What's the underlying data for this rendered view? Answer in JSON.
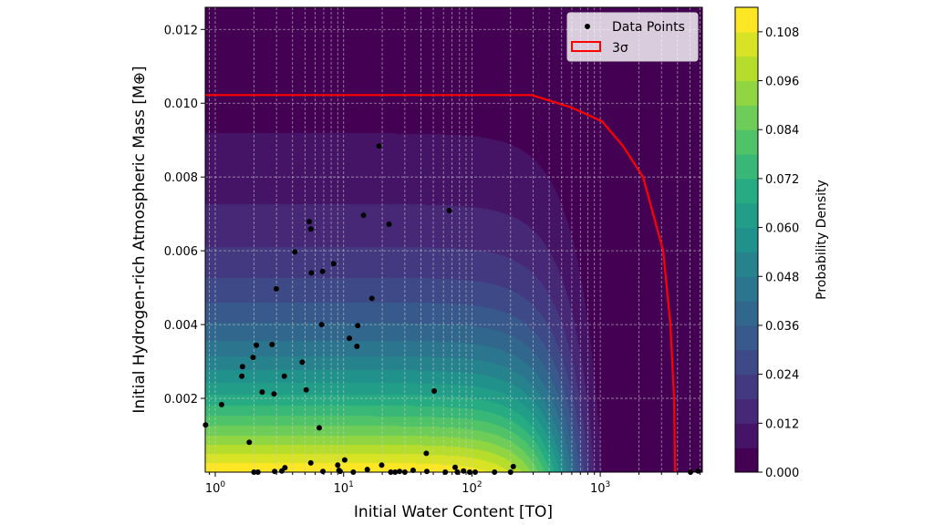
{
  "chart_data": {
    "type": "contour+scatter",
    "xlabel": "Initial Water Content [TO]",
    "ylabel": "Initial Hydrogen-rich Atmospheric Mass [M⊕]",
    "xscale": "log",
    "xlim": [
      0.835,
      6240
    ],
    "ylim": [
      0,
      0.0126
    ],
    "xticks": [
      {
        "v": 1,
        "base": "10",
        "exp": "0"
      },
      {
        "v": 10,
        "base": "10",
        "exp": "1"
      },
      {
        "v": 100,
        "base": "10",
        "exp": "2"
      },
      {
        "v": 1000,
        "base": "10",
        "exp": "3"
      }
    ],
    "yticks": [
      "0.002",
      "0.004",
      "0.006",
      "0.008",
      "0.010",
      "0.012"
    ],
    "grid": true,
    "legend": {
      "placement": "top-right",
      "entries": [
        "Data Points",
        "3σ"
      ]
    },
    "colorbar": {
      "label": "Probability Density",
      "range": [
        0,
        0.114
      ],
      "level_step": 0.006,
      "ticks": [
        "0.000",
        "0.012",
        "0.024",
        "0.036",
        "0.048",
        "0.060",
        "0.072",
        "0.084",
        "0.096",
        "0.108"
      ],
      "colormap": "viridis"
    },
    "colors": {
      "points": "#000000",
      "sigma_curve": "#ff0000"
    },
    "sigma_curve": [
      [
        0.835,
        0.01022
      ],
      [
        293,
        0.01022
      ],
      [
        601,
        0.00988
      ],
      [
        1031,
        0.00951
      ],
      [
        1503,
        0.00884
      ],
      [
        2153,
        0.008
      ],
      [
        3090,
        0.006
      ],
      [
        3520,
        0.004
      ],
      [
        3757,
        0.002
      ],
      [
        3830,
        0.0
      ]
    ],
    "points": [
      [
        18.9,
        0.00884
      ],
      [
        14.3,
        0.00696
      ],
      [
        22.6,
        0.00672
      ],
      [
        66.7,
        0.00709
      ],
      [
        5.4,
        0.00679
      ],
      [
        5.55,
        0.00659
      ],
      [
        4.17,
        0.00597
      ],
      [
        8.36,
        0.00565
      ],
      [
        5.61,
        0.0054
      ],
      [
        6.86,
        0.00544
      ],
      [
        2.99,
        0.00497
      ],
      [
        16.6,
        0.00471
      ],
      [
        6.75,
        0.004
      ],
      [
        12.9,
        0.00397
      ],
      [
        11.1,
        0.00363
      ],
      [
        12.7,
        0.00341
      ],
      [
        2.09,
        0.00344
      ],
      [
        2.77,
        0.00346
      ],
      [
        1.97,
        0.00311
      ],
      [
        1.63,
        0.00286
      ],
      [
        1.61,
        0.0026
      ],
      [
        4.76,
        0.00298
      ],
      [
        3.45,
        0.0026
      ],
      [
        2.32,
        0.00217
      ],
      [
        2.87,
        0.00212
      ],
      [
        5.11,
        0.00223
      ],
      [
        50.8,
        0.0022
      ],
      [
        1.12,
        0.00183
      ],
      [
        0.84,
        0.00128
      ],
      [
        6.46,
        0.0012
      ],
      [
        1.84,
        0.00081
      ],
      [
        44.1,
        0.00051
      ],
      [
        5.55,
        0.00025
      ],
      [
        10.2,
        0.00033
      ],
      [
        9.0,
        0.00019
      ],
      [
        19.8,
        0.00019
      ],
      [
        15.3,
        7e-05
      ],
      [
        34.8,
        5e-05
      ],
      [
        210,
        0.00015
      ],
      [
        3.49,
        0.00012
      ],
      [
        3.3,
        3e-05
      ],
      [
        2.9,
        2e-05
      ],
      [
        2.0,
        0.0
      ],
      [
        2.15,
        0.0
      ],
      [
        6.9,
        2e-05
      ],
      [
        9.2,
        5e-05
      ],
      [
        9.4,
        2e-05
      ],
      [
        11.9,
        0.0
      ],
      [
        23.3,
        0.0
      ],
      [
        25.2,
        0.0
      ],
      [
        27.3,
        2e-05
      ],
      [
        30,
        0.0
      ],
      [
        44.5,
        2e-05
      ],
      [
        62,
        0.0
      ],
      [
        74,
        0.00013
      ],
      [
        77,
        0.0
      ],
      [
        86,
        3e-05
      ],
      [
        96,
        0.0
      ],
      [
        106,
        0.0
      ],
      [
        150,
        0.0
      ],
      [
        200,
        0.0
      ],
      [
        5050,
        0.0
      ],
      [
        5780,
        3e-05
      ]
    ]
  }
}
